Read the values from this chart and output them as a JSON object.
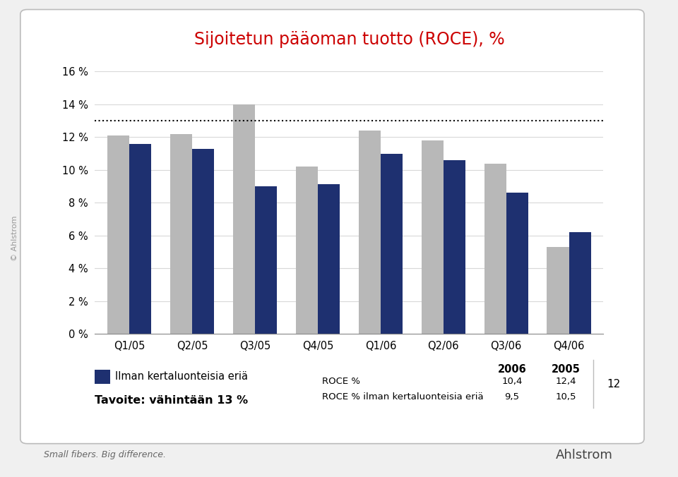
{
  "title": "Sijoitetun pääoman tuotto (ROCE), %",
  "title_color": "#cc0000",
  "categories": [
    "Q1/05",
    "Q2/05",
    "Q3/05",
    "Q4/05",
    "Q1/06",
    "Q2/06",
    "Q3/06",
    "Q4/06"
  ],
  "roce_values": [
    12.1,
    12.2,
    14.0,
    10.2,
    12.4,
    11.8,
    10.4,
    5.3
  ],
  "ilman_values": [
    11.6,
    11.3,
    9.0,
    9.15,
    11.0,
    10.6,
    8.6,
    6.2
  ],
  "roce_color": "#b8b8b8",
  "ilman_color": "#1e3070",
  "target_line": 13.0,
  "ylim": [
    0,
    16
  ],
  "yticks": [
    0,
    2,
    4,
    6,
    8,
    10,
    12,
    14,
    16
  ],
  "legend_label": "Ilman kertaluonteisia eriä",
  "target_label": "Tavoite: vähintään 13 %",
  "table_headers": [
    "2006",
    "2005"
  ],
  "table_row1_label": "ROCE %",
  "table_row1_vals": [
    "10,4",
    "12,4"
  ],
  "table_row2_label": "ROCE % ilman kertaluonteisia eriä",
  "table_row2_vals": [
    "9,5",
    "10,5"
  ],
  "footer_left": "Small fibers. Big difference.",
  "page_number": "12",
  "bg_color": "#f0f0f0",
  "chart_bg": "#ffffff",
  "border_color": "#bbbbbb",
  "watermark": "© Ahlstrom"
}
